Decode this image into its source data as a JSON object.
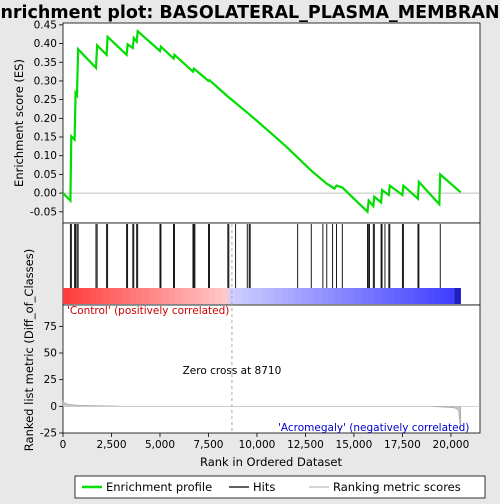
{
  "chart_data": {
    "type": "line",
    "title": "Enrichment plot: BASOLATERAL_PLASMA_MEMBRANE",
    "xlabel": "Rank in Ordered Dataset",
    "xlim": [
      0,
      21500
    ],
    "x_ticks": [
      0,
      2500,
      5000,
      7500,
      10000,
      12500,
      15000,
      17500,
      20000
    ],
    "x_tick_labels": [
      "0",
      "2,500",
      "5,000",
      "7,500",
      "10,000",
      "12,500",
      "15,000",
      "17,500",
      "20,000"
    ],
    "enrichment": {
      "ylabel": "Enrichment score (ES)",
      "ylim": [
        -0.08,
        0.455
      ],
      "y_ticks": [
        0.45,
        0.4,
        0.35,
        0.3,
        0.25,
        0.2,
        0.15,
        0.1,
        0.05,
        0.0,
        -0.05
      ],
      "y_tick_labels": [
        "0.45",
        "0.40",
        "0.35",
        "0.30",
        "0.25",
        "0.20",
        "0.15",
        "0.10",
        "0.05",
        "0.00",
        "-0.05"
      ],
      "line_color": "#00dd00",
      "points": [
        [
          0,
          0.0
        ],
        [
          380,
          -0.02
        ],
        [
          430,
          0.152
        ],
        [
          600,
          0.143
        ],
        [
          650,
          0.268
        ],
        [
          720,
          0.262
        ],
        [
          780,
          0.385
        ],
        [
          1700,
          0.335
        ],
        [
          1760,
          0.395
        ],
        [
          2250,
          0.37
        ],
        [
          2300,
          0.418
        ],
        [
          3280,
          0.37
        ],
        [
          3330,
          0.398
        ],
        [
          3600,
          0.388
        ],
        [
          3650,
          0.415
        ],
        [
          3800,
          0.405
        ],
        [
          3850,
          0.433
        ],
        [
          5000,
          0.38
        ],
        [
          5050,
          0.392
        ],
        [
          5700,
          0.36
        ],
        [
          5750,
          0.37
        ],
        [
          6700,
          0.325
        ],
        [
          6750,
          0.333
        ],
        [
          7500,
          0.3
        ],
        [
          7550,
          0.302
        ],
        [
          8500,
          0.258
        ],
        [
          8700,
          0.25
        ],
        [
          9500,
          0.215
        ],
        [
          10000,
          0.193
        ],
        [
          11000,
          0.148
        ],
        [
          11500,
          0.125
        ],
        [
          12100,
          0.095
        ],
        [
          12800,
          0.06
        ],
        [
          13600,
          0.025
        ],
        [
          14000,
          0.012
        ],
        [
          14100,
          0.02
        ],
        [
          14400,
          0.015
        ],
        [
          15100,
          -0.02
        ],
        [
          15700,
          -0.05
        ],
        [
          15760,
          -0.02
        ],
        [
          16000,
          -0.035
        ],
        [
          16050,
          -0.01
        ],
        [
          16400,
          -0.025
        ],
        [
          16450,
          0.008
        ],
        [
          16800,
          -0.005
        ],
        [
          16850,
          0.02
        ],
        [
          17500,
          -0.005
        ],
        [
          17550,
          0.02
        ],
        [
          18300,
          -0.015
        ],
        [
          18350,
          0.03
        ],
        [
          19400,
          -0.03
        ],
        [
          19450,
          0.05
        ],
        [
          20500,
          0.002
        ]
      ],
      "zero_line": 0.0
    },
    "hits": {
      "ranks": [
        380,
        430,
        600,
        650,
        720,
        780,
        1700,
        1760,
        2250,
        2300,
        3280,
        3330,
        3600,
        3650,
        3800,
        3850,
        5000,
        5050,
        5700,
        5750,
        6700,
        6750,
        6800,
        7500,
        7550,
        8500,
        8550,
        8900,
        9500,
        9600,
        9650,
        12100,
        12800,
        13400,
        13600,
        13900,
        14100,
        14400,
        15700,
        15760,
        15800,
        16000,
        16050,
        16400,
        16450,
        16600,
        16800,
        16850,
        17500,
        17550,
        18300,
        18350,
        19450
      ]
    },
    "ranked_metric": {
      "ylabel": "Ranked list metric (Diff_of_Classes)",
      "ylim": [
        -25,
        95
      ],
      "y_ticks": [
        75,
        50,
        25,
        0,
        -25
      ],
      "y_tick_labels": [
        "75",
        "50",
        "25",
        "0",
        "-25"
      ],
      "profile": [
        [
          0,
          5.0
        ],
        [
          80,
          3.0
        ],
        [
          300,
          1.8
        ],
        [
          800,
          1.0
        ],
        [
          1500,
          0.6
        ],
        [
          2800,
          0.3
        ],
        [
          3000,
          0.0
        ],
        [
          19000,
          0.0
        ],
        [
          19200,
          -0.3
        ],
        [
          19800,
          -0.8
        ],
        [
          20200,
          -1.5
        ],
        [
          20400,
          -3.5
        ],
        [
          20500,
          -22.0
        ]
      ],
      "zero_cross_rank": 8710,
      "zero_cross_label": "Zero cross at 8710",
      "positive_label": "'Control' (positively correlated)",
      "negative_label": "'Acromegaly' (negatively correlated)",
      "positive_color": "#cc0000",
      "negative_color": "#0000cc"
    },
    "heatmap_bar": {
      "n_genes": 20500,
      "positive_color": "#ff3a3a",
      "negative_color": "#3a3aff"
    },
    "legend": {
      "placement": "bottom",
      "entries": [
        {
          "label": "Enrichment profile",
          "color": "#00dd00"
        },
        {
          "label": "Hits",
          "color": "#000000"
        },
        {
          "label": "Ranking metric scores",
          "color": "#bbbbbb"
        }
      ]
    }
  }
}
